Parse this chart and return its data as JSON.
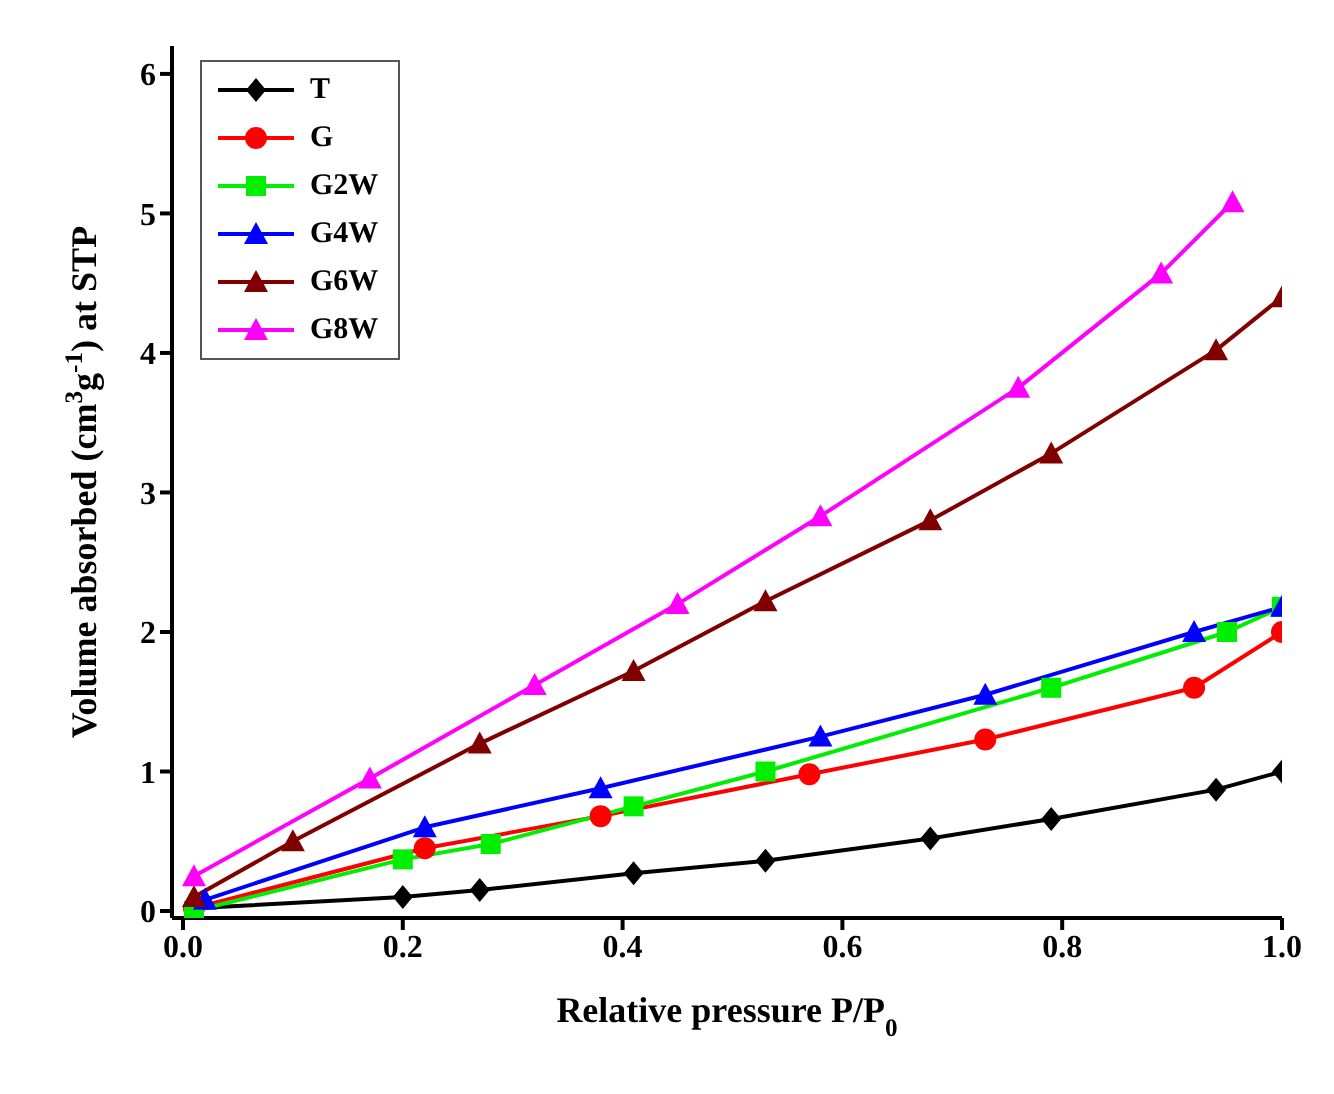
{
  "chart_data": {
    "type": "line",
    "xlabel": "Relative pressure P/P$_{0}$",
    "ylabel": "Volume absorbed (cm$^{3}$g$^{-1}$) at STP",
    "xlim": [
      -0.01,
      1.0
    ],
    "ylim": [
      -0.05,
      6.2
    ],
    "xticks": [
      {
        "value": 0,
        "label": "0.0"
      },
      0.2,
      0.4,
      0.6,
      0.8,
      {
        "value": 1,
        "label": "1.0"
      }
    ],
    "yticks": [
      0,
      1,
      2,
      3,
      4,
      5,
      6
    ],
    "grid": false,
    "legend": "top left",
    "series": [
      {
        "name": "T",
        "color": "#000000",
        "marker": "diamond",
        "x": [
          0.01,
          0.2,
          0.27,
          0.41,
          0.53,
          0.68,
          0.79,
          0.94,
          1.0
        ],
        "values": [
          0.02,
          0.1,
          0.15,
          0.27,
          0.36,
          0.52,
          0.66,
          0.87,
          1.0
        ]
      },
      {
        "name": "G",
        "color": "#ff0000",
        "marker": "circle",
        "x": [
          0.01,
          0.22,
          0.38,
          0.57,
          0.73,
          0.92,
          1.0
        ],
        "values": [
          0.02,
          0.45,
          0.68,
          0.98,
          1.23,
          1.6,
          2.0
        ]
      },
      {
        "name": "G2W",
        "color": "#00ee00",
        "marker": "square",
        "x": [
          0.01,
          0.2,
          0.28,
          0.41,
          0.53,
          0.79,
          0.95,
          1.0
        ],
        "values": [
          0.0,
          0.37,
          0.48,
          0.75,
          1.0,
          1.6,
          2.0,
          2.18
        ]
      },
      {
        "name": "G4W",
        "color": "#0000ff",
        "marker": "triangle",
        "x": [
          0.02,
          0.22,
          0.38,
          0.58,
          0.73,
          0.92,
          1.0
        ],
        "values": [
          0.08,
          0.6,
          0.88,
          1.25,
          1.55,
          2.0,
          2.18
        ]
      },
      {
        "name": "G6W",
        "color": "#800000",
        "marker": "triangle",
        "x": [
          0.01,
          0.1,
          0.27,
          0.41,
          0.53,
          0.68,
          0.79,
          0.94,
          1.0
        ],
        "values": [
          0.1,
          0.5,
          1.2,
          1.72,
          2.22,
          2.8,
          3.28,
          4.02,
          4.4
        ]
      },
      {
        "name": "G8W",
        "color": "#ff00ff",
        "marker": "triangle",
        "x": [
          0.01,
          0.17,
          0.32,
          0.45,
          0.58,
          0.76,
          0.89,
          0.955
        ],
        "values": [
          0.25,
          0.95,
          1.62,
          2.2,
          2.83,
          3.75,
          4.57,
          5.08
        ]
      }
    ]
  }
}
